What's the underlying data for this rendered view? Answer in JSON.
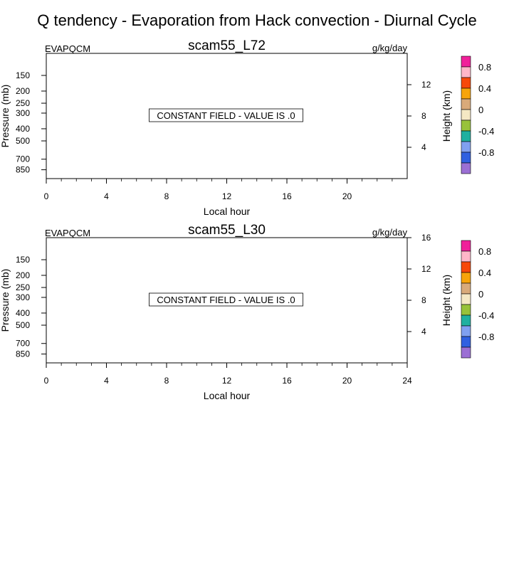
{
  "title": "Q tendency - Evaporation from Hack convection - Diurnal Cycle",
  "chart_data": [
    {
      "type": "heatmap",
      "title": "scam55_L72",
      "left_label": "EVAPQCM",
      "units": "g/kg/day",
      "message": "CONSTANT FIELD - VALUE IS .0",
      "xlabel": "Local hour",
      "ylabel": "Pressure (mb)",
      "ylabel_right": "Height (km)",
      "xlim": [
        0,
        24
      ],
      "x_ticks": [
        0,
        4,
        8,
        12,
        16,
        20
      ],
      "y_ticks": [
        150,
        200,
        250,
        300,
        400,
        500,
        700,
        850
      ],
      "y_right_ticks": [
        4,
        8,
        12
      ],
      "constant_value": 0,
      "colorbar_labels": [
        "0.8",
        "0.4",
        "0",
        "-0.4",
        "-0.8"
      ],
      "colorbar_colors": [
        "#f0209a",
        "#ffb6c8",
        "#f7480a",
        "#f7a40a",
        "#d9aa7a",
        "#f5e8c4",
        "#98c23a",
        "#20b0a0",
        "#80a0f0",
        "#3060e0",
        "#9b6fd4"
      ]
    },
    {
      "type": "heatmap",
      "title": "scam55_L30",
      "left_label": "EVAPQCM",
      "units": "g/kg/day",
      "message": "CONSTANT FIELD - VALUE IS .0",
      "xlabel": "Local hour",
      "ylabel": "Pressure (mb)",
      "ylabel_right": "Height (km)",
      "xlim": [
        0,
        24
      ],
      "x_ticks": [
        0,
        4,
        8,
        12,
        16,
        20,
        24
      ],
      "y_ticks": [
        150,
        200,
        250,
        300,
        400,
        500,
        700,
        850
      ],
      "y_right_ticks": [
        4,
        8,
        12,
        16
      ],
      "constant_value": 0,
      "colorbar_labels": [
        "0.8",
        "0.4",
        "0",
        "-0.4",
        "-0.8"
      ],
      "colorbar_colors": [
        "#f0209a",
        "#ffb6c8",
        "#f7480a",
        "#f7a40a",
        "#d9aa7a",
        "#f5e8c4",
        "#98c23a",
        "#20b0a0",
        "#80a0f0",
        "#3060e0",
        "#9b6fd4"
      ]
    }
  ]
}
